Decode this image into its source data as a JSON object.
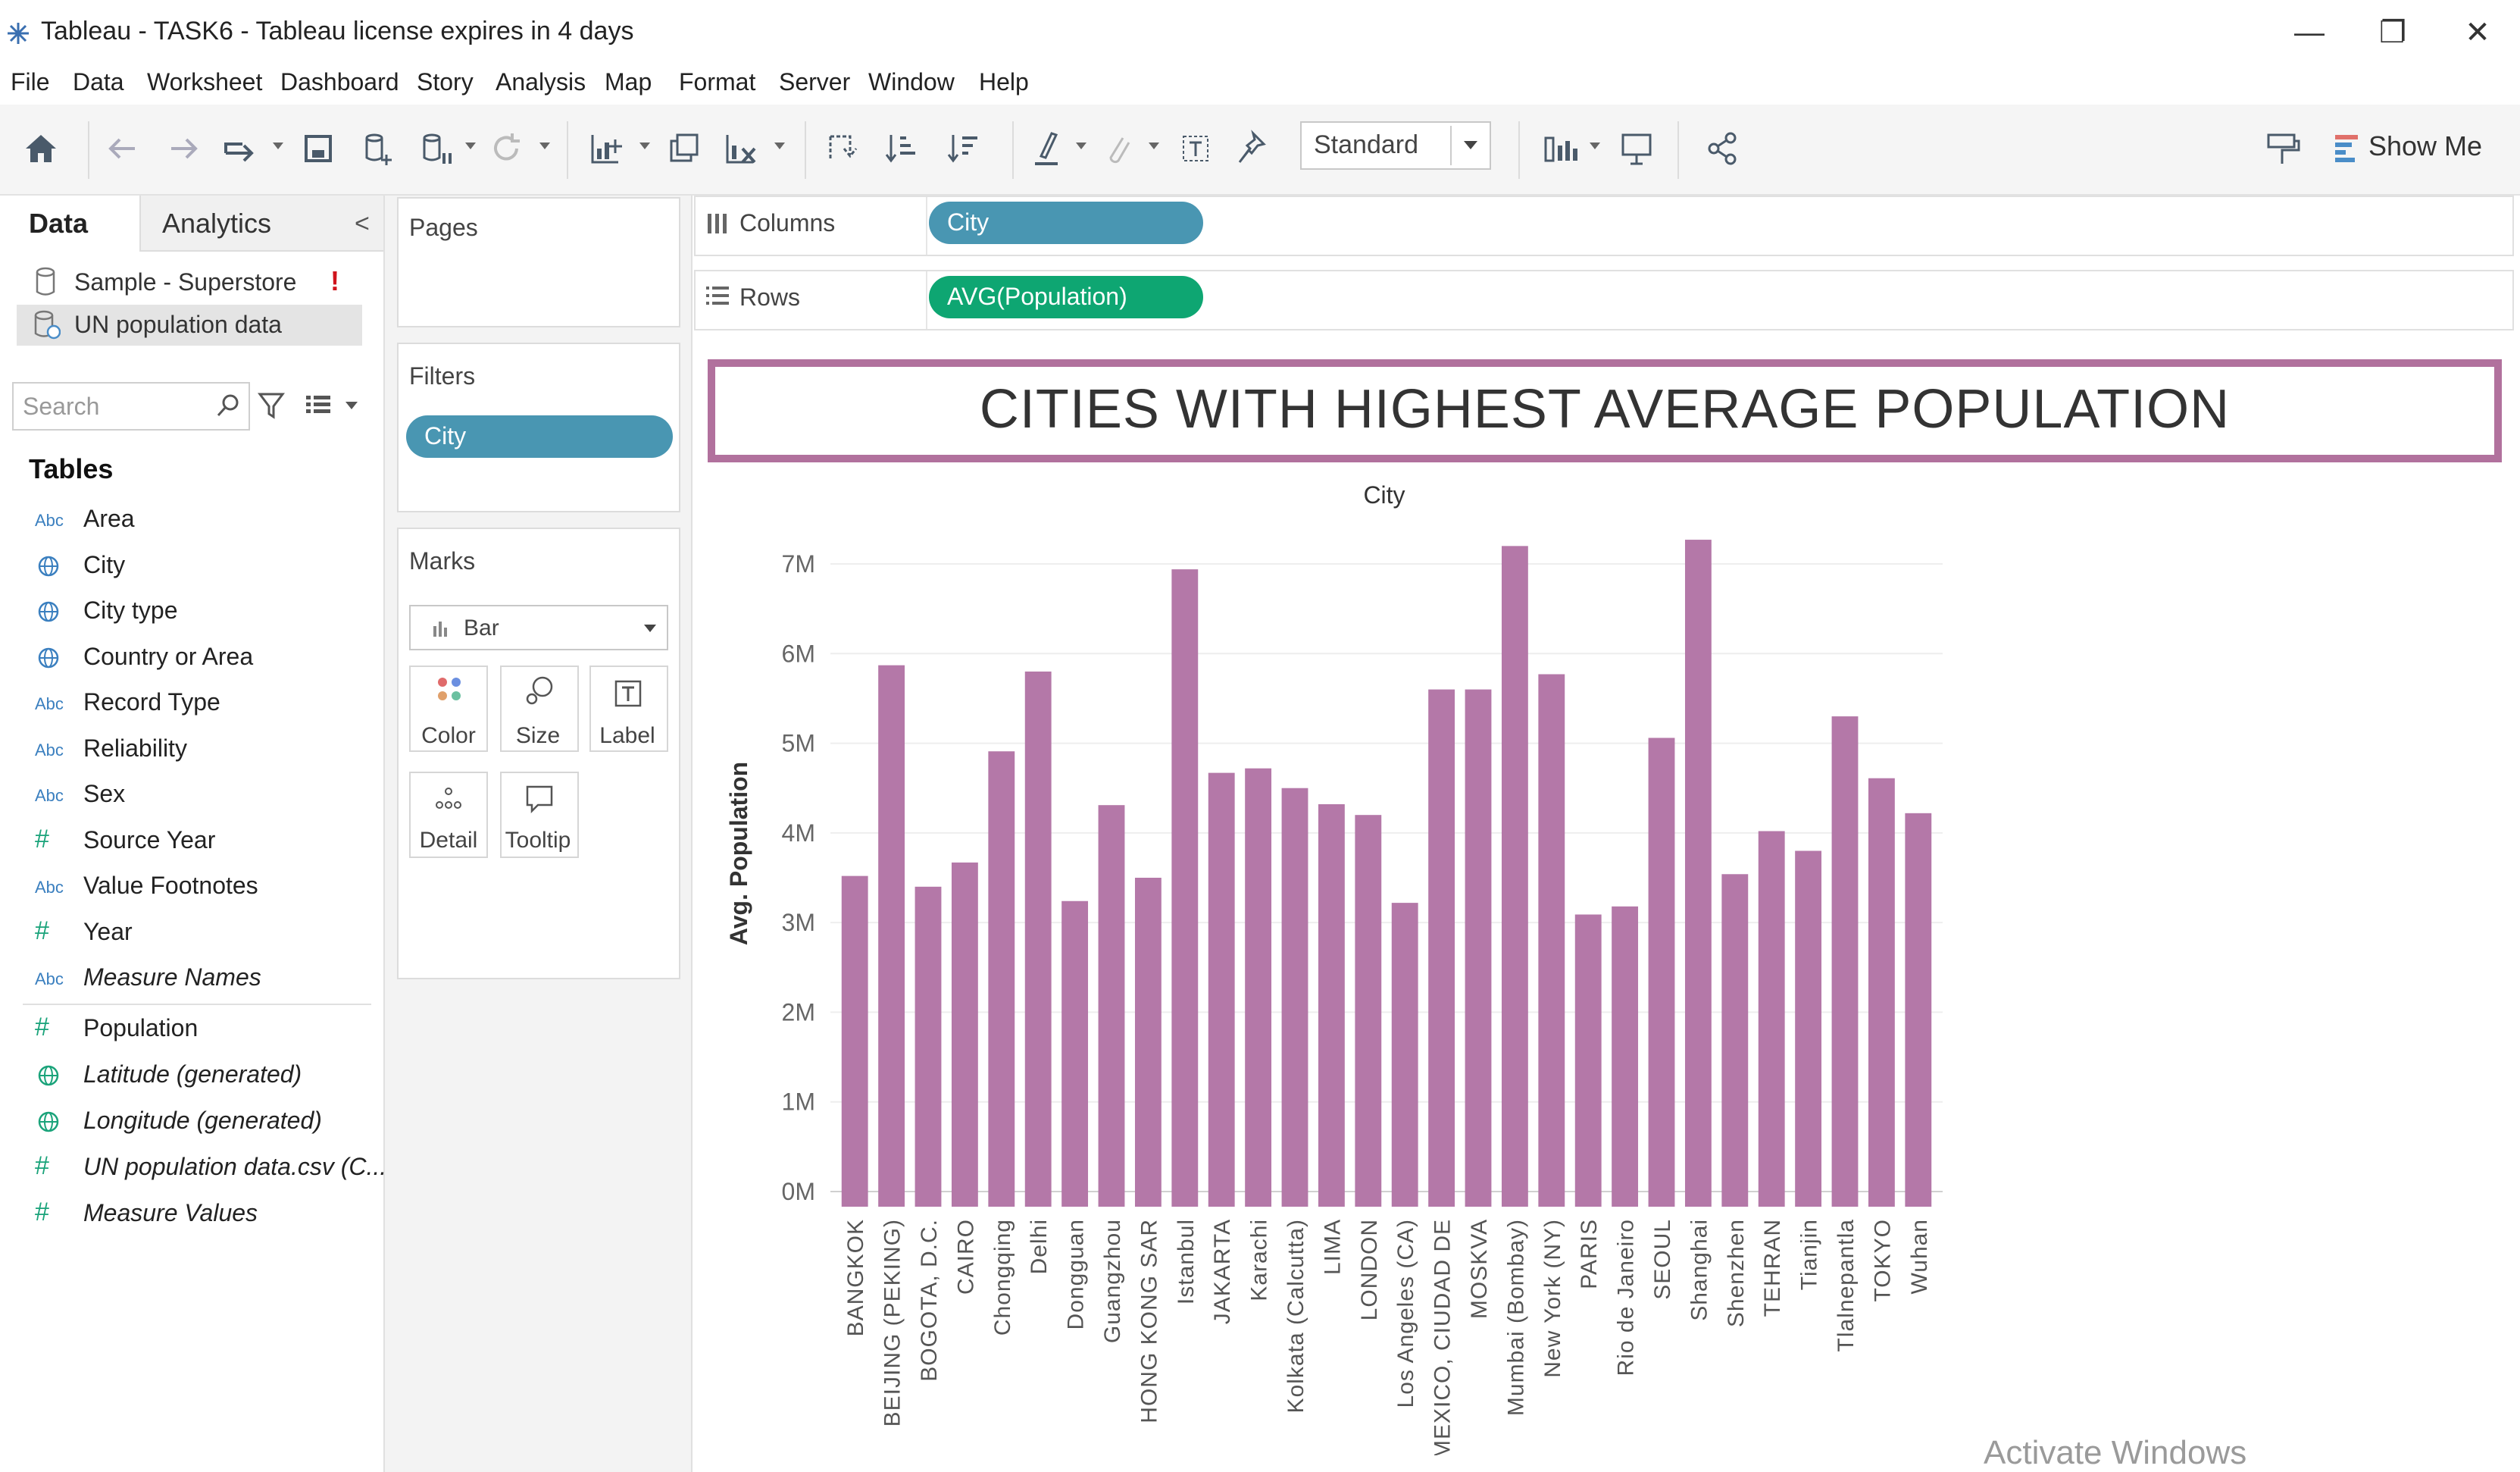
{
  "window": {
    "title": "Tableau - TASK6 - Tableau license expires in 4 days",
    "minimize": "—",
    "restore": "❐",
    "close": "✕"
  },
  "menu": [
    "File",
    "Data",
    "Worksheet",
    "Dashboard",
    "Story",
    "Analysis",
    "Map",
    "Format",
    "Server",
    "Window",
    "Help"
  ],
  "toolbar": {
    "fit_select": "Standard",
    "show_me": "Show Me",
    "icons": [
      "home-icon",
      "undo-icon",
      "redo-icon",
      "replay-icon",
      "save-icon",
      "new-datasource-icon",
      "pause-autoupdate-icon",
      "refresh-icon",
      "new-worksheet-icon",
      "duplicate-icon",
      "clear-icon",
      "swap-icon",
      "sort-ascending-icon",
      "sort-descending-icon",
      "highlight-icon",
      "group-icon",
      "show-labels-icon",
      "fix-axes-icon",
      "show-hide-cards-icon",
      "presentation-icon",
      "share-icon",
      "format-painter-icon"
    ]
  },
  "data_pane": {
    "tabs": {
      "data": "Data",
      "analytics": "Analytics"
    },
    "collapse": "<",
    "datasources": [
      {
        "name": "Sample - Superstore",
        "warning": "!"
      },
      {
        "name": "UN population data"
      }
    ],
    "search_placeholder": "Search",
    "tables_heading": "Tables",
    "fields": [
      {
        "type": "Abc",
        "name": "Area",
        "kind": "dim"
      },
      {
        "type": "geo",
        "name": "City",
        "kind": "geo"
      },
      {
        "type": "geo",
        "name": "City type",
        "kind": "geo"
      },
      {
        "type": "geo",
        "name": "Country or Area",
        "kind": "geo"
      },
      {
        "type": "Abc",
        "name": "Record Type",
        "kind": "dim"
      },
      {
        "type": "Abc",
        "name": "Reliability",
        "kind": "dim"
      },
      {
        "type": "Abc",
        "name": "Sex",
        "kind": "dim"
      },
      {
        "type": "#",
        "name": "Source Year",
        "kind": "num-dim"
      },
      {
        "type": "Abc",
        "name": "Value Footnotes",
        "kind": "dim"
      },
      {
        "type": "#",
        "name": "Year",
        "kind": "num-dim"
      },
      {
        "type": "Abc",
        "name": "Measure Names",
        "kind": "dim",
        "italic": true
      }
    ],
    "measures": [
      {
        "type": "#",
        "name": "Population",
        "kind": "measure"
      },
      {
        "type": "geo",
        "name": "Latitude (generated)",
        "kind": "geo-m",
        "italic": true
      },
      {
        "type": "geo",
        "name": "Longitude (generated)",
        "kind": "geo-m",
        "italic": true
      },
      {
        "type": "#",
        "name": "UN population data.csv (C...",
        "kind": "measure",
        "italic": true
      },
      {
        "type": "#",
        "name": "Measure Values",
        "kind": "measure",
        "italic": true
      }
    ]
  },
  "cards": {
    "pages": "Pages",
    "filters": "Filters",
    "filter_pill": "City",
    "marks": "Marks",
    "mark_type": "Bar",
    "mark_buttons": [
      "Color",
      "Size",
      "Label",
      "Detail",
      "Tooltip"
    ]
  },
  "shelves": {
    "columns_label": "Columns",
    "columns_pill": "City",
    "rows_label": "Rows",
    "rows_pill": "AVG(Population)"
  },
  "chart_title": "CITIES WITH HIGHEST AVERAGE POPULATION",
  "watermark": "Activate Windows",
  "chart_data": {
    "type": "bar",
    "title": "CITIES WITH HIGHEST AVERAGE POPULATION",
    "xlabel": "City",
    "ylabel": "Avg. Population",
    "bar_color": "#b478a8",
    "ylim": [
      0,
      7000000
    ],
    "y_ticks": [
      "0M",
      "1M",
      "2M",
      "3M",
      "4M",
      "5M",
      "6M",
      "7M"
    ],
    "grid": true,
    "categories": [
      "BANGKOK",
      "BEIJING (PEKING)",
      "BOGOTA, D.C.",
      "CAIRO",
      "Chongqing",
      "Delhi",
      "Dongguan",
      "Guangzhou",
      "HONG KONG SAR",
      "Istanbul",
      "JAKARTA",
      "Karachi",
      "Kolkata (Calcutta)",
      "LIMA",
      "LONDON",
      "Los Angeles (CA)",
      "MEXICO, CIUDAD DE",
      "MOSKVA",
      "Mumbai (Bombay)",
      "New York (NY)",
      "PARIS",
      "Rio de Janeiro",
      "SEOUL",
      "Shanghai",
      "Shenzhen",
      "TEHRAN",
      "Tianjin",
      "Tlalnepantla",
      "TOKYO",
      "Wuhan"
    ],
    "values": [
      3520000,
      5870000,
      3400000,
      3670000,
      4910000,
      5800000,
      3240000,
      4310000,
      3500000,
      6940000,
      4670000,
      4720000,
      4500000,
      4320000,
      4200000,
      3220000,
      5600000,
      5600000,
      7200000,
      5770000,
      3090000,
      3180000,
      5060000,
      7270000,
      3540000,
      4020000,
      3800000,
      5300000,
      4610000,
      4220000
    ]
  }
}
